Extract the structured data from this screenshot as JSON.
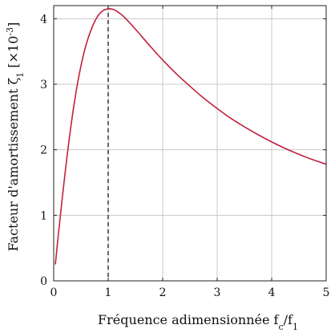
{
  "chart_data": {
    "type": "line",
    "title": "",
    "xlabel": "Fréquence adimensionnée f_c/f_1",
    "ylabel": "Facteur d'amortissement ζ_1 [×10^-3]",
    "xlim": [
      0,
      5
    ],
    "ylim": [
      0,
      4.2
    ],
    "x_ticks": [
      "0",
      "1",
      "2",
      "3",
      "4",
      "5"
    ],
    "y_ticks": [
      "0",
      "1",
      "2",
      "3",
      "4"
    ],
    "grid": true,
    "series": [
      {
        "color": "#c0213d",
        "x": [
          0.03,
          0.1,
          0.2,
          0.3,
          0.4,
          0.5,
          0.6,
          0.7,
          0.8,
          0.9,
          1.0,
          1.1,
          1.2,
          1.3,
          1.5,
          1.75,
          2.0,
          2.25,
          2.5,
          2.75,
          3.0,
          3.25,
          3.5,
          3.75,
          4.0,
          4.25,
          4.5,
          4.75,
          5.0
        ],
        "y": [
          0.25,
          0.82,
          1.58,
          2.26,
          2.83,
          3.28,
          3.62,
          3.86,
          4.03,
          4.12,
          4.15,
          4.14,
          4.09,
          4.02,
          3.84,
          3.6,
          3.37,
          3.16,
          2.97,
          2.79,
          2.63,
          2.48,
          2.35,
          2.23,
          2.12,
          2.02,
          1.93,
          1.85,
          1.78
        ]
      }
    ],
    "annotations": [
      {
        "type": "vline",
        "x": 1.0,
        "style": "dashed",
        "color": "#000000"
      }
    ]
  }
}
